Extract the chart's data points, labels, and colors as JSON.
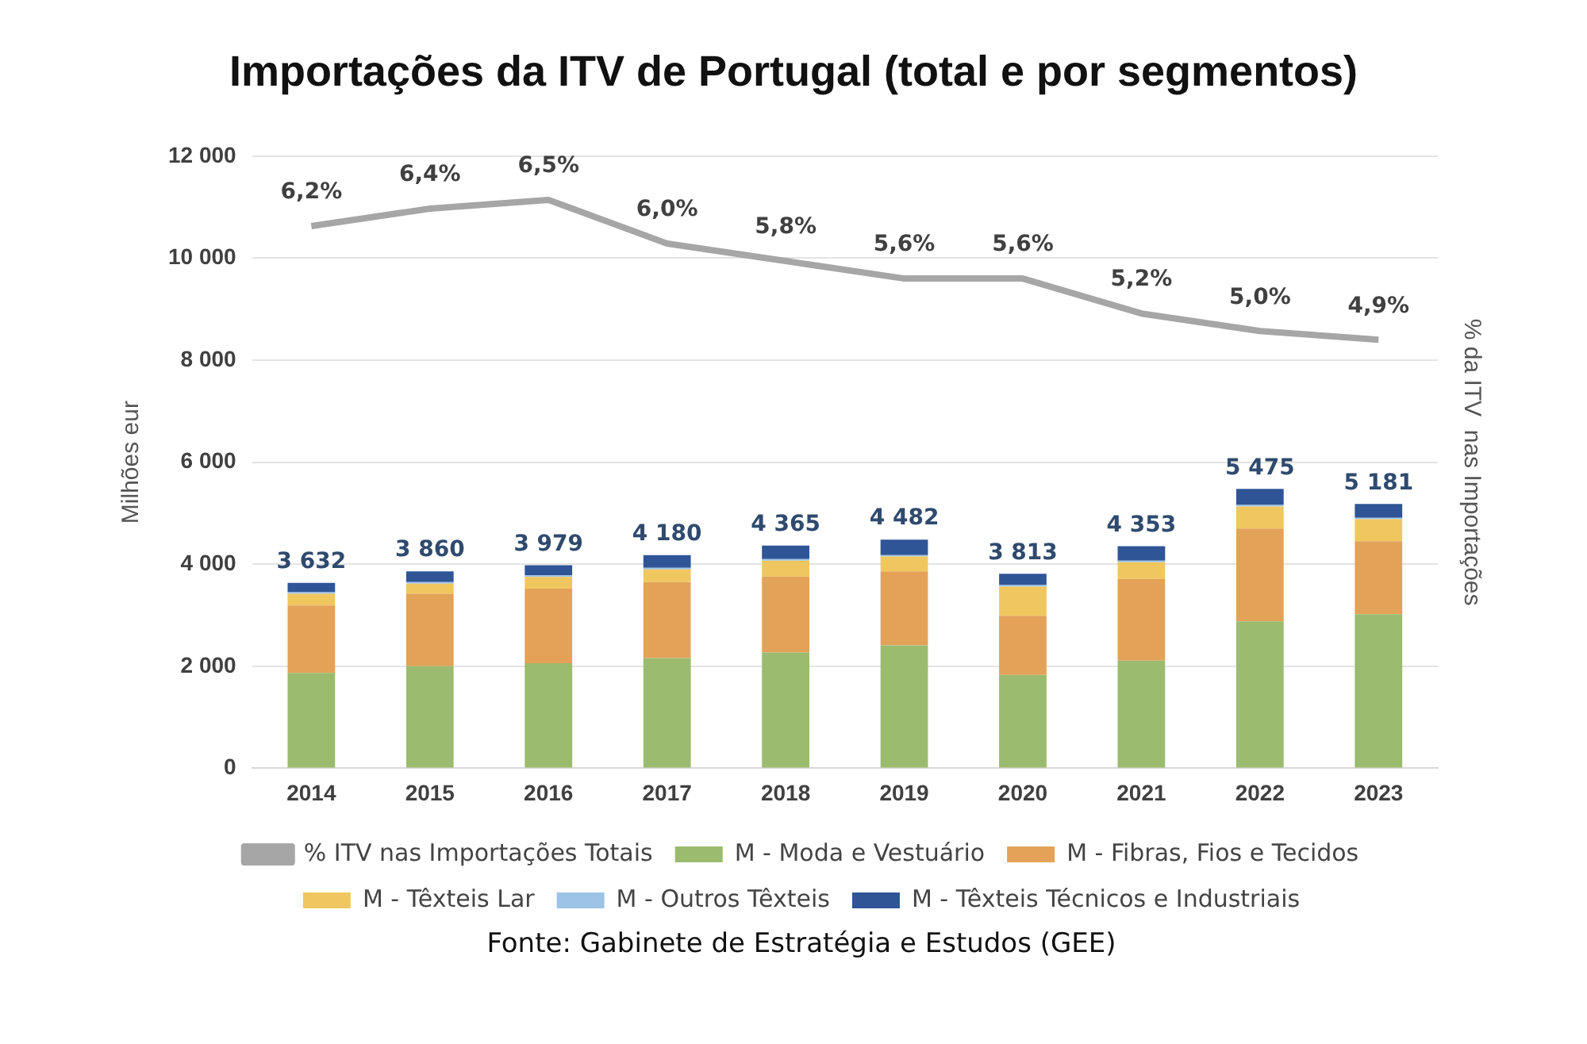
{
  "chart_data": {
    "type": "bar",
    "title": "Importações da ITV de Portugal (total e por segmentos)",
    "ylabel": "Milhões eur",
    "y2label": "% da ITV  nas Importações",
    "categories": [
      "2014",
      "2015",
      "2016",
      "2017",
      "2018",
      "2019",
      "2020",
      "2021",
      "2022",
      "2023"
    ],
    "stacked": true,
    "grid": "y",
    "legend": "bottom",
    "tick_labels": "xy",
    "marker": "none",
    "line_style": "solid",
    "ylim": [
      0,
      12000
    ],
    "yticks": [
      {
        "value": 0,
        "label": "0"
      },
      {
        "value": 2000,
        "label": "2 000"
      },
      {
        "value": 4000,
        "label": "4 000"
      },
      {
        "value": 6000,
        "label": "6 000"
      },
      {
        "value": 8000,
        "label": "8 000"
      },
      {
        "value": 10000,
        "label": "10 000"
      },
      {
        "value": 12000,
        "label": "12 000"
      }
    ],
    "y2lim": [
      0,
      7
    ],
    "series": [
      {
        "name": "M - Moda e Vestuário",
        "color": "#9bbb6e",
        "values": [
          1870,
          2000,
          2060,
          2160,
          2270,
          2410,
          1830,
          2110,
          2880,
          3020
        ]
      },
      {
        "name": "M - Fibras, Fios e Tecidos",
        "color": "#e3a257",
        "values": [
          1320,
          1420,
          1460,
          1490,
          1490,
          1450,
          1160,
          1600,
          1820,
          1430
        ]
      },
      {
        "name": "M - Têxteis Lar",
        "color": "#f0c75e",
        "values": [
          230,
          200,
          230,
          250,
          310,
          290,
          570,
          330,
          430,
          430
        ]
      },
      {
        "name": "M - Outros Têxteis",
        "color": "#9dc3e6",
        "values": [
          30,
          30,
          30,
          30,
          30,
          30,
          30,
          30,
          30,
          30
        ]
      },
      {
        "name": "M - Têxteis Técnicos e Industriais",
        "color": "#2f5597",
        "values": [
          182,
          210,
          199,
          250,
          265,
          302,
          223,
          283,
          315,
          271
        ]
      },
      {
        "name": "% ITV nas Importações Totais",
        "type": "line",
        "axis": "y2",
        "color": "#a6a6a6",
        "values": [
          6.2,
          6.4,
          6.5,
          6.0,
          5.8,
          5.6,
          5.6,
          5.2,
          5.0,
          4.9
        ],
        "value_labels": [
          "6,2%",
          "6,4%",
          "6,5%",
          "6,0%",
          "5,8%",
          "5,6%",
          "5,6%",
          "5,2%",
          "5,0%",
          "4,9%"
        ]
      }
    ],
    "totals": [
      "3 632",
      "3 860",
      "3 979",
      "4 180",
      "4 365",
      "4 482",
      "3 813",
      "4 353",
      "5 475",
      "5 181"
    ],
    "annotations": [
      "Fonte: Gabinete de Estratégia e Estudos (GEE)"
    ]
  }
}
